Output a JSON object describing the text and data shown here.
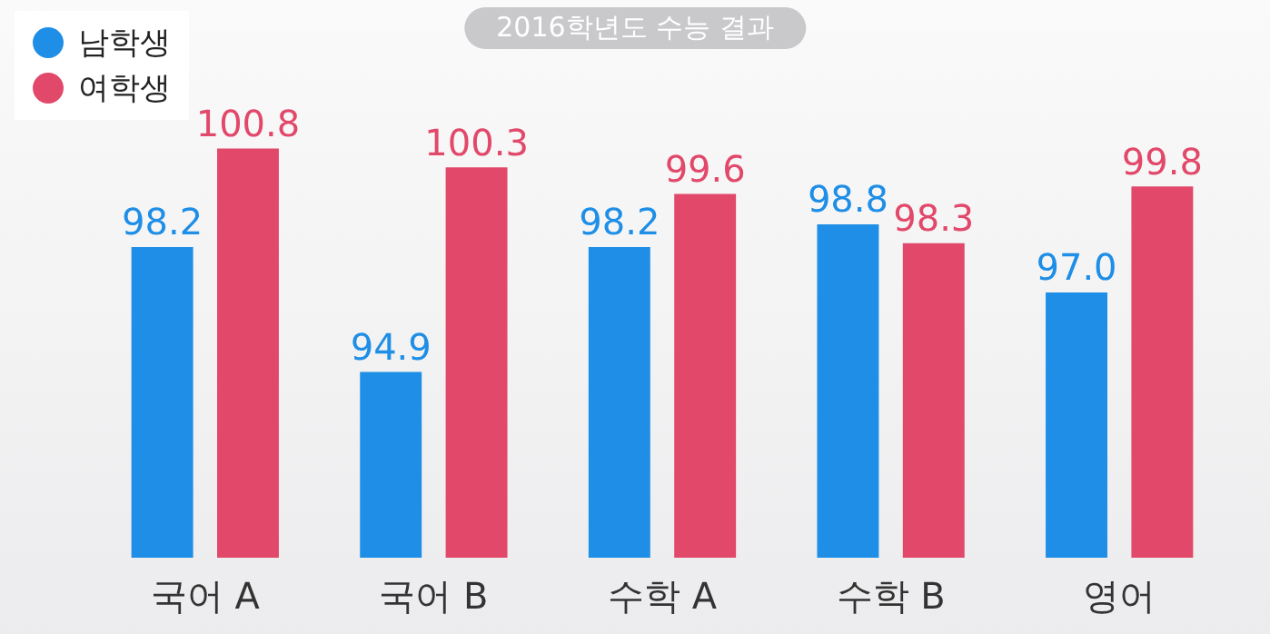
{
  "chart_data": {
    "type": "bar",
    "title": "2016학년도 수능 결과",
    "categories": [
      "국어 A",
      "국어 B",
      "수학 A",
      "수학 B",
      "영어"
    ],
    "series": [
      {
        "name": "남학생",
        "color": "#1e8ee6",
        "values": [
          98.2,
          94.9,
          98.2,
          98.8,
          97.0
        ],
        "value_labels": [
          "98.2",
          "94.9",
          "98.2",
          "98.8",
          "97.0"
        ]
      },
      {
        "name": "여학생",
        "color": "#e2486a",
        "values": [
          100.8,
          100.3,
          99.6,
          98.3,
          99.8
        ],
        "value_labels": [
          "100.8",
          "100.3",
          "99.6",
          "98.3",
          "99.8"
        ]
      }
    ],
    "tick_labels": "x",
    "grid": false,
    "legend": "top left"
  }
}
